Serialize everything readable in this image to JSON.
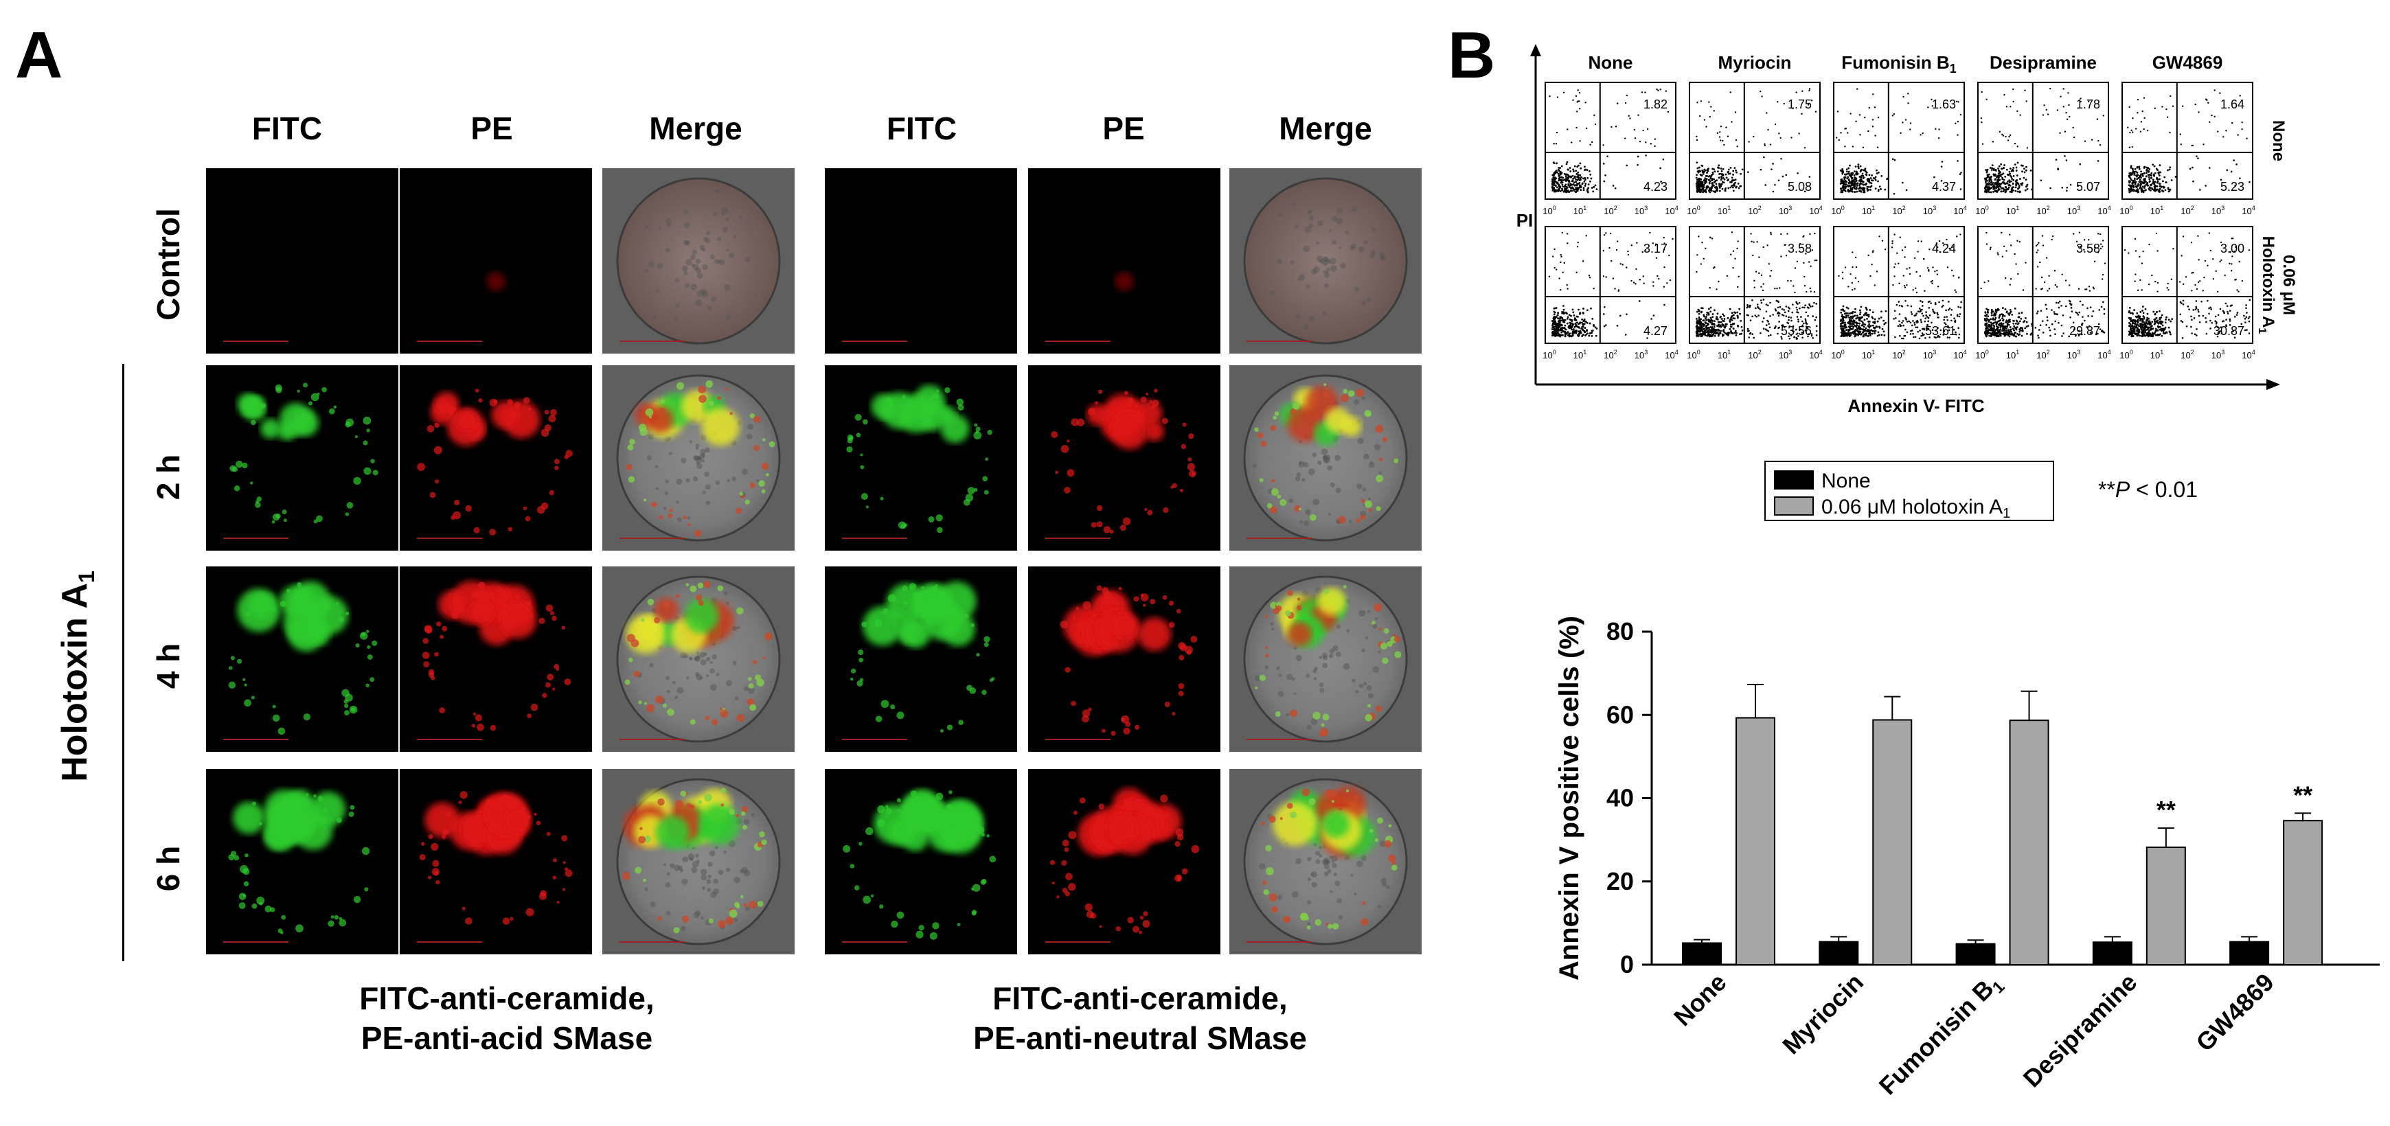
{
  "panel_a": {
    "letter": "A",
    "column_headers": [
      "FITC",
      "PE",
      "Merge",
      "FITC",
      "PE",
      "Merge"
    ],
    "row_labels": [
      "Control",
      "2 h",
      "4 h",
      "6 h"
    ],
    "group_label": "Holotoxin A",
    "group_label_sub": "1",
    "captions": [
      {
        "line1": "FITC-anti-ceramide,",
        "line2": "PE-anti-acid  SMase"
      },
      {
        "line1": "FITC-anti-ceramide,",
        "line2": "PE-anti-neutral  SMase"
      }
    ]
  },
  "panel_b": {
    "letter": "B",
    "flow": {
      "column_labels": [
        {
          "main": "None",
          "sub": ""
        },
        {
          "main": "Myriocin",
          "sub": ""
        },
        {
          "main": "Fumonisin B",
          "sub": "1"
        },
        {
          "main": "Desipramine",
          "sub": ""
        },
        {
          "main": "GW4869",
          "sub": ""
        }
      ],
      "row_labels": [
        {
          "lines": [
            "None"
          ]
        },
        {
          "lines": [
            "0.06 μM",
            "Holotoxin A"
          ],
          "sub": "1"
        }
      ],
      "y_axis_label": "PI",
      "x_axis_label": "Annexin V- FITC",
      "tick_labels": [
        "10",
        "10",
        "10",
        "10",
        "10"
      ],
      "tick_exponents": [
        "0",
        "1",
        "2",
        "3",
        "4"
      ],
      "quadrant_values": [
        [
          {
            "ur": "1.82",
            "lr": "4.23"
          },
          {
            "ur": "1.75",
            "lr": "5.08"
          },
          {
            "ur": "1.63",
            "lr": "4.37"
          },
          {
            "ur": "1.78",
            "lr": "5.07"
          },
          {
            "ur": "1.64",
            "lr": "5.23"
          }
        ],
        [
          {
            "ur": "3.17",
            "lr": "4.27"
          },
          {
            "ur": "3.58",
            "lr": "53.56"
          },
          {
            "ur": "4.24",
            "lr": "53.61"
          },
          {
            "ur": "3.58",
            "lr": "29.87"
          },
          {
            "ur": "3.00",
            "lr": "30.87"
          }
        ]
      ]
    },
    "significance_note": {
      "prefix": "**",
      "p": "P",
      "rest": " < 0.01"
    },
    "chart_data": {
      "type": "bar",
      "categories": [
        "None",
        "Myriocin",
        "Fumonisin B1",
        "Desipramine",
        "GW4869"
      ],
      "category_labels": [
        {
          "main": "None",
          "sub": ""
        },
        {
          "main": "Myriocin",
          "sub": ""
        },
        {
          "main": "Fumonisin B",
          "sub": "1"
        },
        {
          "main": "Desipramine",
          "sub": ""
        },
        {
          "main": "GW4869",
          "sub": ""
        }
      ],
      "series": [
        {
          "name": "None",
          "color": "#000000",
          "values": [
            5.2,
            5.5,
            5.0,
            5.4,
            5.5
          ],
          "errors": [
            0.8,
            1.2,
            0.9,
            1.3,
            1.2
          ]
        },
        {
          "name": "0.06 μM holotoxin A1",
          "color": "#a6a6a6",
          "values": [
            59.3,
            58.8,
            58.7,
            28.2,
            34.6
          ],
          "errors": [
            8.0,
            5.6,
            7.0,
            4.6,
            1.8
          ]
        }
      ],
      "legend": [
        {
          "text": "None",
          "sub": ""
        },
        {
          "text": "0.06 μM holotoxin A",
          "sub": "1"
        }
      ],
      "significance": [
        "",
        "",
        "",
        "**",
        "**"
      ],
      "ylabel": "Annexin V positive cells (%)",
      "xlabel": "",
      "ylim": [
        0,
        80
      ],
      "yticks": [
        0,
        20,
        40,
        60,
        80
      ],
      "legend_position": "top",
      "grid": false
    },
    "colors": {
      "fitc": "#2ecc2e",
      "pe": "#e01818",
      "merge_yellow": "#e6e62a"
    }
  }
}
